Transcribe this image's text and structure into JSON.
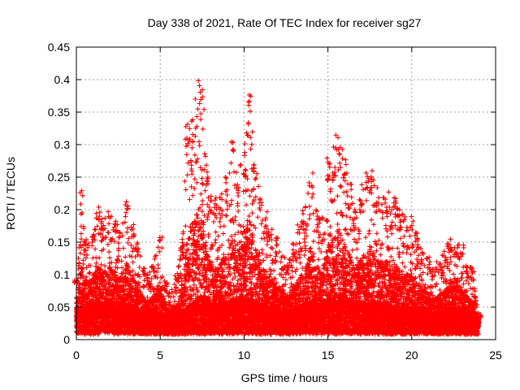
{
  "chart_data": {
    "type": "scatter",
    "title": "Day 338 of 2021, Rate Of TEC Index for receiver sg27",
    "xlabel": "GPS time / hours",
    "ylabel": "ROTI / TECUs",
    "xlim": [
      0,
      25
    ],
    "ylim": [
      0,
      0.45
    ],
    "xticks": [
      "0",
      "5",
      "10",
      "15",
      "20",
      "25"
    ],
    "yticks": [
      "0",
      "0.05",
      "0.1",
      "0.15",
      "0.2",
      "0.25",
      "0.3",
      "0.35",
      "0.4",
      "0.45"
    ],
    "grid": true,
    "marker": "+",
    "point_color": "#ff0000",
    "envelope": {
      "x": [
        0.0,
        0.3,
        0.6,
        1.0,
        1.3,
        1.6,
        2.0,
        2.3,
        2.6,
        3.0,
        3.3,
        3.6,
        4.0,
        4.3,
        4.6,
        5.0,
        5.3,
        5.6,
        6.0,
        6.3,
        6.6,
        7.0,
        7.3,
        7.5,
        7.8,
        8.0,
        8.3,
        8.6,
        9.0,
        9.3,
        9.6,
        10.0,
        10.3,
        10.6,
        11.0,
        11.3,
        11.6,
        12.0,
        12.3,
        12.6,
        13.0,
        13.3,
        13.6,
        14.0,
        14.3,
        14.6,
        15.0,
        15.3,
        15.6,
        16.0,
        16.3,
        16.6,
        17.0,
        17.3,
        17.6,
        18.0,
        18.3,
        18.6,
        19.0,
        19.3,
        19.6,
        20.0,
        20.3,
        20.6,
        21.0,
        21.3,
        21.6,
        22.0,
        22.3,
        22.6,
        23.0,
        23.3,
        23.6,
        24.0
      ],
      "peak": [
        0.1,
        0.23,
        0.16,
        0.17,
        0.21,
        0.19,
        0.2,
        0.19,
        0.17,
        0.22,
        0.18,
        0.16,
        0.11,
        0.1,
        0.12,
        0.16,
        0.09,
        0.08,
        0.1,
        0.15,
        0.34,
        0.36,
        0.4,
        0.41,
        0.26,
        0.23,
        0.22,
        0.22,
        0.25,
        0.31,
        0.26,
        0.29,
        0.38,
        0.29,
        0.22,
        0.2,
        0.17,
        0.16,
        0.13,
        0.12,
        0.15,
        0.18,
        0.2,
        0.26,
        0.2,
        0.19,
        0.28,
        0.3,
        0.33,
        0.28,
        0.24,
        0.2,
        0.24,
        0.28,
        0.26,
        0.24,
        0.22,
        0.23,
        0.22,
        0.2,
        0.19,
        0.19,
        0.17,
        0.14,
        0.13,
        0.11,
        0.12,
        0.14,
        0.16,
        0.15,
        0.15,
        0.12,
        0.11,
        0.04
      ],
      "base": [
        0.03,
        0.03,
        0.03,
        0.035,
        0.035,
        0.035,
        0.035,
        0.035,
        0.035,
        0.035,
        0.03,
        0.03,
        0.025,
        0.025,
        0.025,
        0.025,
        0.02,
        0.02,
        0.02,
        0.025,
        0.03,
        0.035,
        0.04,
        0.045,
        0.04,
        0.035,
        0.035,
        0.035,
        0.035,
        0.04,
        0.04,
        0.04,
        0.04,
        0.035,
        0.035,
        0.03,
        0.03,
        0.03,
        0.025,
        0.025,
        0.03,
        0.03,
        0.035,
        0.035,
        0.035,
        0.035,
        0.04,
        0.04,
        0.045,
        0.04,
        0.04,
        0.035,
        0.035,
        0.035,
        0.035,
        0.035,
        0.035,
        0.035,
        0.03,
        0.03,
        0.03,
        0.03,
        0.03,
        0.03,
        0.025,
        0.025,
        0.025,
        0.025,
        0.03,
        0.03,
        0.03,
        0.025,
        0.025,
        0.02
      ]
    }
  }
}
